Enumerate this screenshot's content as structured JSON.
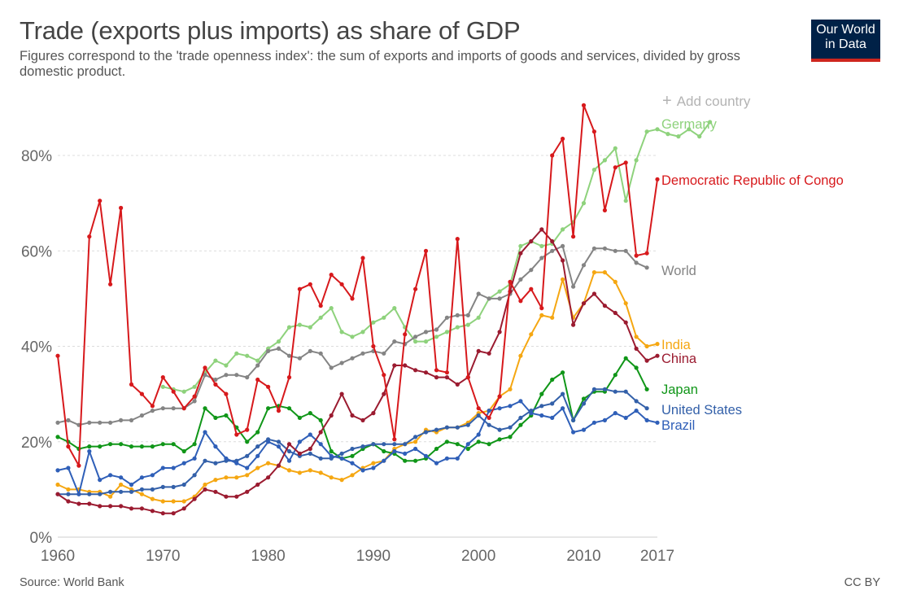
{
  "header": {
    "title": "Trade (exports plus imports) as share of GDP",
    "subtitle": "Figures correspond to the 'trade openness index': the sum of exports and imports of goods and services, divided by gross domestic product.",
    "logo_line1": "Our World",
    "logo_line2": "in Data",
    "add_country_icon": "plus-icon",
    "add_country_label": "Add country"
  },
  "footer": {
    "source": "Source: World Bank",
    "license": "CC BY"
  },
  "colors": {
    "logo_bg": "#002147",
    "logo_bar": "#ce261e"
  },
  "chart_data": {
    "type": "line",
    "title": "Trade (exports plus imports) as share of GDP",
    "xlabel": "",
    "ylabel": "",
    "xlim": [
      1960,
      2017
    ],
    "ylim": [
      0,
      90
    ],
    "x_ticks": [
      "1960",
      "1970",
      "1980",
      "1990",
      "2000",
      "2010",
      "2017"
    ],
    "y_ticks": [
      "0%",
      "20%",
      "40%",
      "60%",
      "80%"
    ],
    "grid": "horizontal dashed",
    "legend": "inline labels at right end",
    "series": [
      {
        "name": "Germany",
        "color": "#8ed27c",
        "start": 1970,
        "values": [
          31.5,
          31.0,
          30.5,
          31.5,
          34.5,
          37.0,
          36.0,
          38.5,
          38.0,
          37.0,
          39.5,
          41.0,
          44.0,
          44.5,
          44.0,
          46.0,
          48.0,
          43.0,
          42.0,
          43.0,
          45.0,
          46.0,
          48.0,
          44.0,
          41.0,
          41.0,
          42.0,
          43.0,
          44.0,
          44.5,
          46.0,
          50.0,
          51.5,
          53.0,
          61.0,
          62.0,
          61.0,
          61.5,
          64.5,
          66.0,
          70.0,
          77.0,
          79.0,
          81.5,
          70.5,
          79.0,
          85.0,
          85.5,
          84.5,
          84.0,
          85.5,
          84.0,
          87.0
        ]
      },
      {
        "name": "Democratic Republic of Congo",
        "color": "#d7191c",
        "start": 1960,
        "values": [
          38.0,
          19.0,
          15.0,
          63.0,
          70.5,
          53.0,
          69.0,
          32.0,
          30.0,
          27.5,
          33.5,
          30.5,
          27.0,
          29.5,
          35.5,
          32.0,
          30.0,
          21.5,
          22.5,
          33.0,
          31.5,
          26.5,
          33.5,
          52.0,
          53.0,
          48.5,
          55.0,
          53.0,
          50.0,
          58.5,
          40.0,
          34.0,
          20.5,
          42.5,
          52.0,
          60.0,
          35.0,
          34.5,
          62.5,
          33.5,
          27.0,
          25.0,
          29.5,
          53.5,
          49.5,
          52.0,
          48.0,
          80.0,
          83.5,
          63.0,
          90.5,
          85.0,
          68.5,
          77.5,
          78.5,
          59.0,
          59.5,
          75.0
        ]
      },
      {
        "name": "World",
        "color": "#848484",
        "start": 1960,
        "values": [
          24.0,
          24.5,
          23.5,
          24.0,
          24.0,
          24.0,
          24.5,
          24.5,
          25.5,
          26.5,
          27.0,
          27.0,
          27.0,
          28.5,
          34.0,
          33.0,
          34.0,
          34.0,
          33.5,
          36.0,
          39.0,
          39.5,
          38.0,
          37.5,
          39.0,
          38.5,
          35.5,
          36.5,
          37.5,
          38.5,
          39.0,
          38.5,
          41.0,
          40.5,
          42.0,
          43.0,
          43.5,
          46.0,
          46.5,
          46.5,
          51.0,
          50.0,
          50.0,
          51.0,
          54.0,
          56.0,
          58.5,
          60.0,
          61.0,
          52.5,
          57.0,
          60.5,
          60.5,
          60.0,
          60.0,
          57.5,
          56.5
        ]
      },
      {
        "name": "India",
        "color": "#f5a712",
        "start": 1960,
        "values": [
          11.0,
          10.0,
          10.0,
          9.5,
          9.5,
          8.5,
          11.0,
          10.0,
          9.0,
          8.0,
          7.5,
          7.5,
          7.5,
          8.5,
          11.0,
          12.0,
          12.5,
          12.5,
          13.0,
          14.5,
          15.5,
          15.0,
          14.0,
          13.5,
          14.0,
          13.5,
          12.5,
          12.0,
          13.0,
          14.5,
          15.5,
          16.0,
          18.5,
          19.5,
          20.0,
          22.5,
          22.0,
          23.0,
          23.0,
          24.0,
          26.0,
          26.5,
          29.5,
          31.0,
          38.0,
          42.5,
          46.5,
          46.0,
          54.0,
          46.0,
          49.0,
          55.5,
          55.5,
          53.5,
          49.0,
          42.0,
          40.0,
          40.5
        ]
      },
      {
        "name": "China",
        "color": "#9b1b30",
        "start": 1960,
        "values": [
          9.0,
          7.5,
          7.0,
          7.0,
          6.5,
          6.5,
          6.5,
          6.0,
          6.0,
          5.5,
          5.0,
          5.0,
          6.0,
          8.0,
          10.0,
          9.5,
          8.5,
          8.5,
          9.5,
          11.0,
          12.5,
          15.0,
          19.5,
          17.5,
          18.5,
          22.0,
          25.5,
          30.0,
          25.5,
          24.5,
          26.0,
          30.0,
          36.0,
          36.0,
          35.0,
          34.5,
          33.5,
          33.5,
          32.0,
          33.5,
          39.0,
          38.5,
          43.0,
          51.5,
          59.5,
          62.0,
          64.5,
          62.0,
          58.0,
          44.5,
          49.0,
          51.0,
          48.5,
          47.0,
          45.0,
          39.5,
          37.0,
          38.0
        ]
      },
      {
        "name": "Japan",
        "color": "#109618",
        "start": 1960,
        "values": [
          21.0,
          20.0,
          18.5,
          19.0,
          19.0,
          19.5,
          19.5,
          19.0,
          19.0,
          19.0,
          19.5,
          19.5,
          18.0,
          19.5,
          27.0,
          25.0,
          25.5,
          23.0,
          20.0,
          22.0,
          27.0,
          27.5,
          27.0,
          25.0,
          26.0,
          24.5,
          18.0,
          16.5,
          17.0,
          18.5,
          19.5,
          18.0,
          17.5,
          16.0,
          16.0,
          16.5,
          18.5,
          20.0,
          19.5,
          18.5,
          20.0,
          19.5,
          20.5,
          21.0,
          23.5,
          25.5,
          30.0,
          33.0,
          34.5,
          24.5,
          29.0,
          30.5,
          30.5,
          34.0,
          37.5,
          35.5,
          31.0
        ]
      },
      {
        "name": "United States",
        "color": "#3360a9",
        "start": 1960,
        "values": [
          9.0,
          9.0,
          9.0,
          9.0,
          9.0,
          9.5,
          9.5,
          9.5,
          10.0,
          10.0,
          10.5,
          10.5,
          11.0,
          13.0,
          16.0,
          15.5,
          16.0,
          16.0,
          17.0,
          19.0,
          20.5,
          20.0,
          18.0,
          17.0,
          17.5,
          16.5,
          16.5,
          17.5,
          18.5,
          19.0,
          19.5,
          19.5,
          19.5,
          19.5,
          21.0,
          22.0,
          22.5,
          23.0,
          23.0,
          23.5,
          25.5,
          23.5,
          22.5,
          23.0,
          25.0,
          26.5,
          27.5,
          28.0,
          30.0,
          24.5,
          28.0,
          31.0,
          31.0,
          30.5,
          30.5,
          28.5,
          27.0
        ]
      },
      {
        "name": "Brazil",
        "color": "#2f5fb8",
        "start": 1960,
        "values": [
          14.0,
          14.5,
          9.0,
          18.0,
          12.0,
          13.0,
          12.5,
          11.0,
          12.5,
          13.0,
          14.5,
          14.5,
          15.5,
          16.5,
          22.0,
          19.0,
          16.5,
          15.5,
          14.5,
          17.0,
          20.0,
          19.0,
          16.0,
          20.0,
          21.5,
          19.5,
          17.0,
          16.5,
          15.5,
          14.0,
          14.5,
          16.0,
          18.0,
          17.5,
          18.5,
          17.0,
          15.5,
          16.5,
          16.5,
          19.5,
          21.5,
          26.5,
          27.0,
          27.5,
          28.5,
          26.0,
          25.5,
          25.0,
          27.0,
          22.0,
          22.5,
          24.0,
          24.5,
          26.0,
          25.0,
          26.5,
          24.5,
          24.0
        ]
      }
    ]
  }
}
